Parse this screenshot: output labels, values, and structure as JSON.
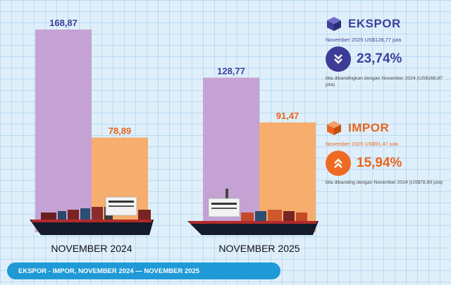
{
  "chart_data": {
    "type": "bar",
    "categories": [
      "NOVEMBER 2024",
      "NOVEMBER 2025"
    ],
    "series": [
      {
        "name": "EKSPOR",
        "values": [
          168.87,
          128.77
        ],
        "labels": [
          "168,87",
          "128,77"
        ],
        "color": "#c5a2d4"
      },
      {
        "name": "IMPOR",
        "values": [
          78.89,
          91.47
        ],
        "labels": [
          "78,89",
          "91,47"
        ],
        "color": "#f6ad6d"
      }
    ],
    "ylim": [
      0,
      168.87
    ],
    "label_colors": {
      "EKSPOR": "#3f3f9c",
      "IMPOR": "#e8641e"
    }
  },
  "export": {
    "title": "EKSPOR",
    "subtitle": "November 2025 US$128,77 juta",
    "change": "23,74%",
    "direction": "down",
    "note": "bila dibandingkan dengan November 2024 (US$168,87 juta)",
    "icon": "cube-icon",
    "color": "#3f3f9c"
  },
  "import": {
    "title": "IMPOR",
    "subtitle": "November 2025 US$91,47 juta",
    "change": "15,94%",
    "direction": "up",
    "note": "bila dibanding dengan November 2024 (US$78,89 juta)",
    "icon": "cube-icon",
    "color": "#e8641e"
  },
  "footer": {
    "text": "EKSPOR - IMPOR, NOVEMBER 2024 — NOVEMBER 2025"
  }
}
